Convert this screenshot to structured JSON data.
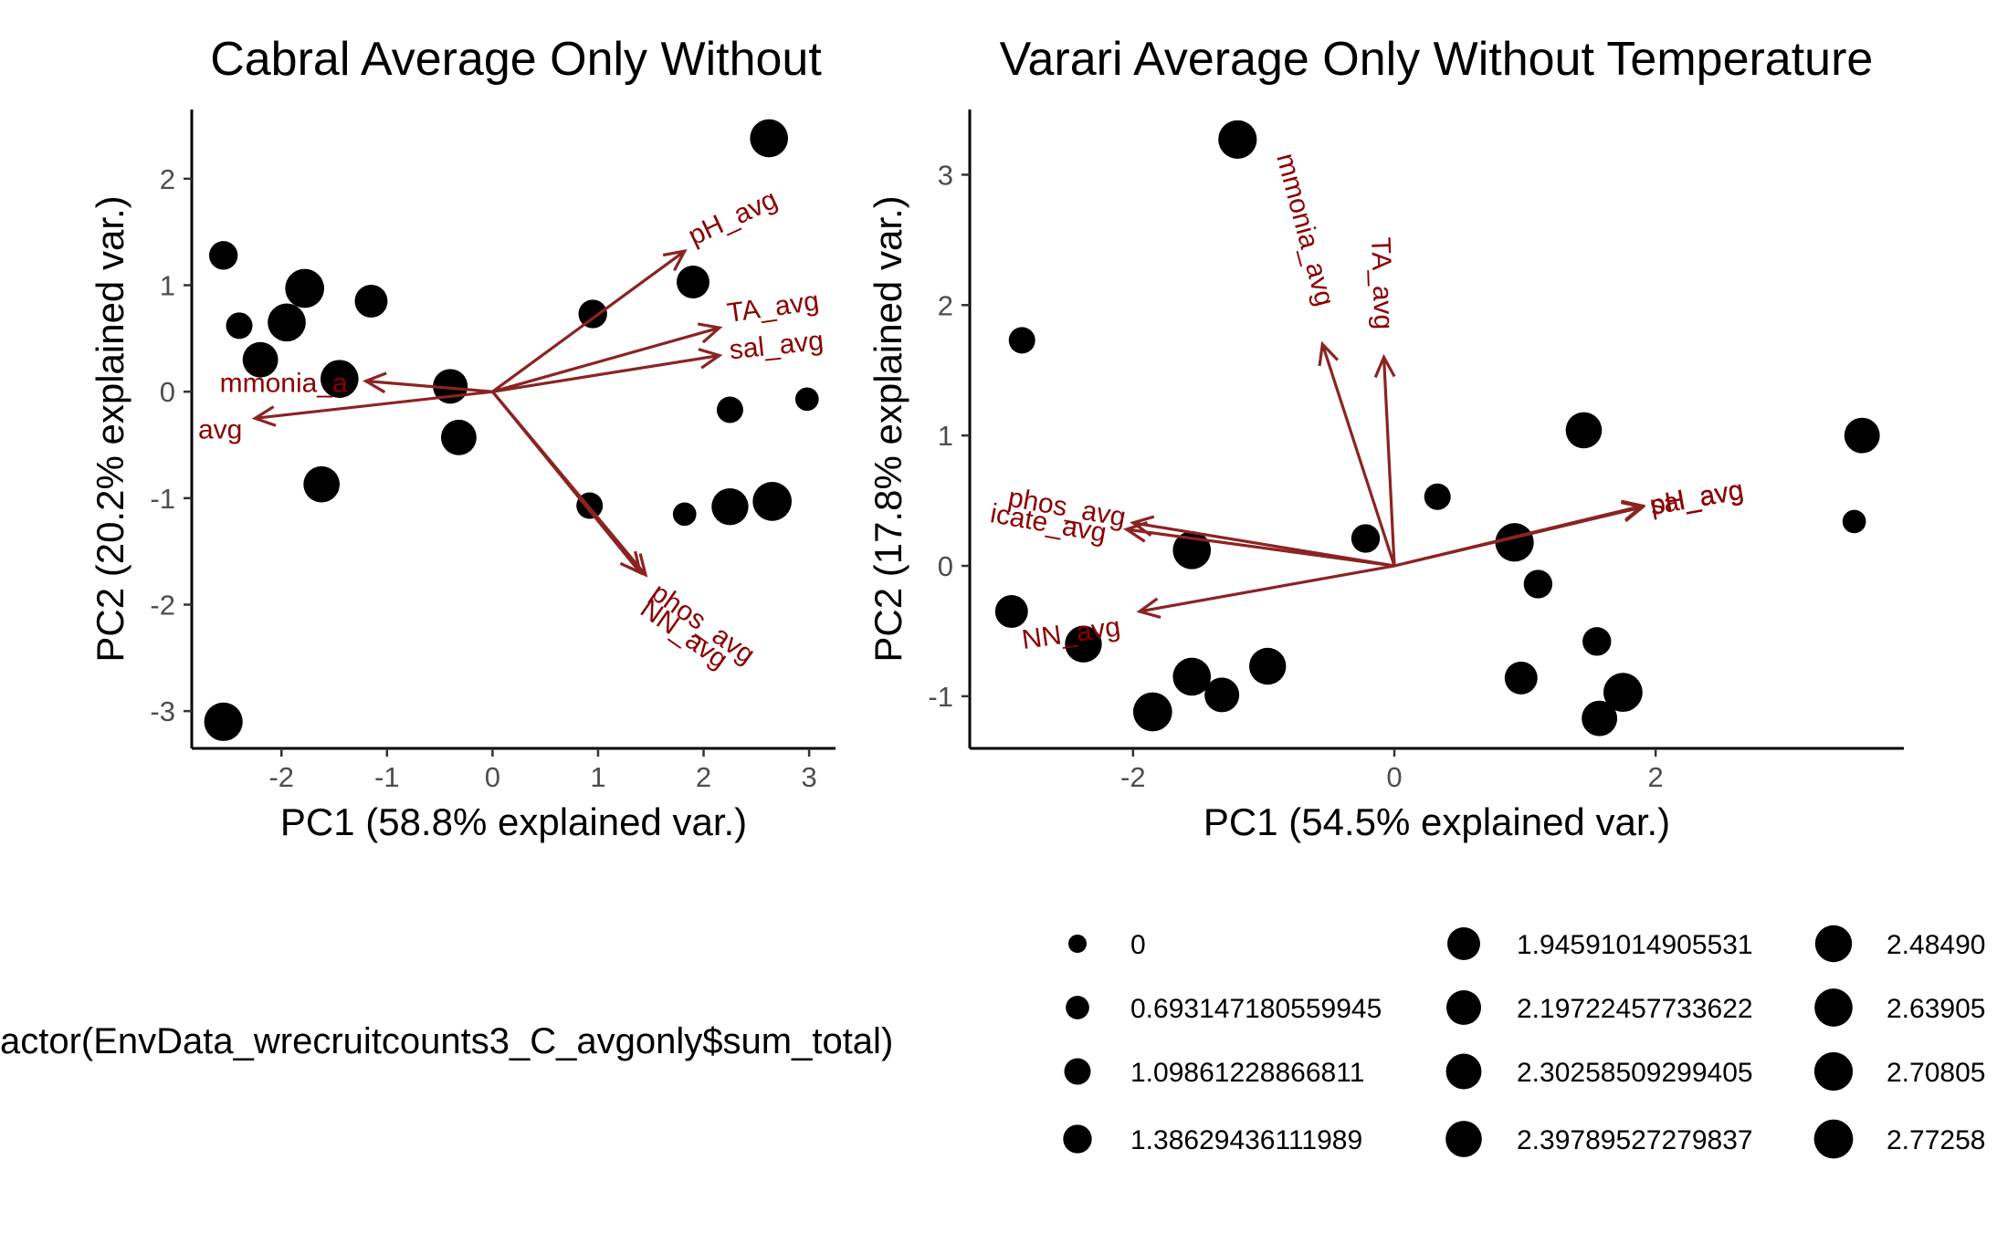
{
  "chart_data": [
    {
      "type": "scatter",
      "title": "Cabral Average Only Without",
      "xlabel": "PC1 (58.8% explained var.)",
      "ylabel": "PC2 (20.2% explained var.)",
      "xlim": [
        -2.85,
        3.25
      ],
      "ylim": [
        -3.35,
        2.65
      ],
      "xticks": [
        -2,
        -1,
        0,
        1,
        2,
        3
      ],
      "yticks": [
        -3,
        -2,
        -1,
        0,
        1,
        2
      ],
      "points": [
        {
          "x": 2.62,
          "y": 2.38,
          "level": 2.639
        },
        {
          "x": -2.55,
          "y": 1.28,
          "level": 1.3863
        },
        {
          "x": -1.78,
          "y": 0.97,
          "level": 2.7726
        },
        {
          "x": -1.95,
          "y": 0.65,
          "level": 2.639
        },
        {
          "x": -2.4,
          "y": 0.62,
          "level": 1.0986
        },
        {
          "x": -2.2,
          "y": 0.3,
          "level": 2.3026
        },
        {
          "x": -1.45,
          "y": 0.12,
          "level": 2.639
        },
        {
          "x": -1.15,
          "y": 0.85,
          "level": 1.9459
        },
        {
          "x": -0.4,
          "y": 0.05,
          "level": 2.1972
        },
        {
          "x": -0.32,
          "y": -0.43,
          "level": 2.3026
        },
        {
          "x": -1.62,
          "y": -0.87,
          "level": 2.3979
        },
        {
          "x": 0.95,
          "y": 0.73,
          "level": 1.3863
        },
        {
          "x": 1.9,
          "y": 1.03,
          "level": 1.9459
        },
        {
          "x": 2.25,
          "y": -0.17,
          "level": 1.0986
        },
        {
          "x": 2.98,
          "y": -0.07,
          "level": 0.6931
        },
        {
          "x": 0.92,
          "y": -1.07,
          "level": 1.0986
        },
        {
          "x": 1.82,
          "y": -1.15,
          "level": 0.6931
        },
        {
          "x": 2.25,
          "y": -1.08,
          "level": 2.4849
        },
        {
          "x": 2.65,
          "y": -1.03,
          "level": 2.7726
        },
        {
          "x": -2.55,
          "y": -3.1,
          "level": 2.7081
        }
      ],
      "loadings": [
        {
          "label": "pH_avg",
          "x": 1.82,
          "y": 1.32
        },
        {
          "label": "TA_avg",
          "x": 2.15,
          "y": 0.6
        },
        {
          "label": "sal_avg",
          "x": 2.15,
          "y": 0.34
        },
        {
          "label": "mmonia_a",
          "x": -1.2,
          "y": 0.1
        },
        {
          "label": "avg",
          "x": -2.25,
          "y": -0.25
        },
        {
          "label": "phos_avg",
          "x": 1.45,
          "y": -1.72
        },
        {
          "label": "NN_avg",
          "x": 1.4,
          "y": -1.7
        }
      ]
    },
    {
      "type": "scatter",
      "title": "Varari Average Only Without Temperature",
      "xlabel": "PC1 (54.5% explained var.)",
      "ylabel": "PC2 (17.8% explained var.)",
      "xlim": [
        -3.25,
        3.9
      ],
      "ylim": [
        -1.4,
        3.5
      ],
      "xticks": [
        -2,
        0,
        2
      ],
      "yticks": [
        -1,
        0,
        1,
        2,
        3
      ],
      "points": [
        {
          "x": -1.2,
          "y": 3.27,
          "level": 2.7081
        },
        {
          "x": -2.85,
          "y": 1.73,
          "level": 1.0986
        },
        {
          "x": 1.45,
          "y": 1.04,
          "level": 2.3979
        },
        {
          "x": 3.58,
          "y": 1.0,
          "level": 2.3026
        },
        {
          "x": 3.52,
          "y": 0.34,
          "level": 0.6931
        },
        {
          "x": 0.33,
          "y": 0.53,
          "level": 1.0986
        },
        {
          "x": -0.22,
          "y": 0.21,
          "level": 1.3863
        },
        {
          "x": 0.92,
          "y": 0.18,
          "level": 2.7081
        },
        {
          "x": -1.55,
          "y": 0.12,
          "level": 2.639
        },
        {
          "x": 1.1,
          "y": -0.14,
          "level": 1.3863
        },
        {
          "x": -2.93,
          "y": -0.35,
          "level": 1.9459
        },
        {
          "x": -2.38,
          "y": -0.6,
          "level": 2.4849
        },
        {
          "x": 1.55,
          "y": -0.58,
          "level": 1.3863
        },
        {
          "x": -0.97,
          "y": -0.77,
          "level": 2.4849
        },
        {
          "x": -1.55,
          "y": -0.85,
          "level": 2.639
        },
        {
          "x": -1.32,
          "y": -0.99,
          "level": 2.1972
        },
        {
          "x": 0.97,
          "y": -0.86,
          "level": 1.9459
        },
        {
          "x": 1.75,
          "y": -0.97,
          "level": 2.7726
        },
        {
          "x": 1.57,
          "y": -1.17,
          "level": 2.3026
        },
        {
          "x": -1.85,
          "y": -1.12,
          "level": 2.7726
        }
      ],
      "loadings": [
        {
          "label": "mmonia_avg",
          "x": -0.55,
          "y": 1.7
        },
        {
          "label": "TA_avg",
          "x": -0.08,
          "y": 1.6
        },
        {
          "label": "phos_avg",
          "x": -2.0,
          "y": 0.33
        },
        {
          "label": "icate_avg",
          "x": -2.05,
          "y": 0.28
        },
        {
          "label": "pH_avg",
          "x": 1.9,
          "y": 0.45
        },
        {
          "label": "sal_avg",
          "x": 1.9,
          "y": 0.46
        },
        {
          "label": "NN_avg",
          "x": -1.95,
          "y": -0.35
        }
      ]
    }
  ],
  "legend": {
    "title": "actor(EnvData_wrecruitcounts3_C_avgonly$sum_total)",
    "placement": "bottom",
    "items": [
      {
        "label": "0",
        "level": 0
      },
      {
        "label": "0.693147180559945",
        "level": 0.6931
      },
      {
        "label": "1.09861228866811",
        "level": 1.0986
      },
      {
        "label": "1.38629436111989",
        "level": 1.3863
      },
      {
        "label": "1.94591014905531",
        "level": 1.9459
      },
      {
        "label": "2.19722457733622",
        "level": 2.1972
      },
      {
        "label": "2.30258509299405",
        "level": 2.3026
      },
      {
        "label": "2.39789527279837",
        "level": 2.3979
      },
      {
        "label": "2.48490",
        "level": 2.4849
      },
      {
        "label": "2.63905",
        "level": 2.639
      },
      {
        "label": "2.70805",
        "level": 2.7081
      },
      {
        "label": "2.77258",
        "level": 2.7726
      }
    ]
  },
  "colors": {
    "points": "#000000",
    "arrows": "#8b2323",
    "arrow_labels": "#8b0000",
    "ticks": "#4d4d4d"
  }
}
